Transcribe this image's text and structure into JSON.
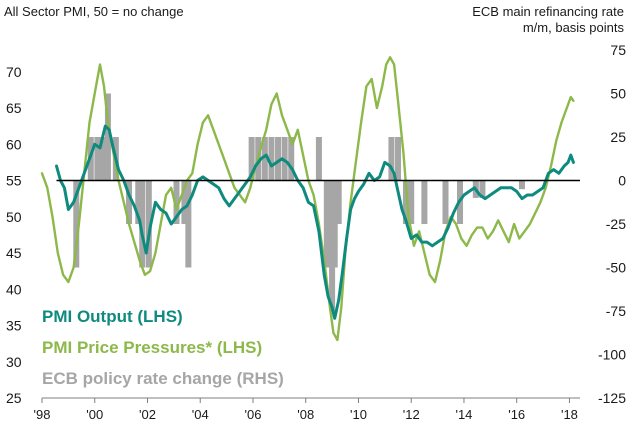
{
  "chart_data": {
    "type": "line",
    "left_axis_label": "All Sector PMI, 50 = no change",
    "right_axis_label_line1": "ECB main refinancing rate",
    "right_axis_label_line2": "m/m, basis points",
    "x_ticks": [
      "'98",
      "'00",
      "'02",
      "'04",
      "'06",
      "'08",
      "'10",
      "'12",
      "'14",
      "'16",
      "'18"
    ],
    "x_tick_years": [
      1998,
      2000,
      2002,
      2004,
      2006,
      2008,
      2010,
      2012,
      2014,
      2016,
      2018
    ],
    "xlim": [
      1998,
      2018.4
    ],
    "ylim_left": [
      25,
      73
    ],
    "yticks_left": [
      25,
      30,
      35,
      40,
      45,
      50,
      55,
      60,
      65,
      70
    ],
    "ylim_right": [
      -125,
      75
    ],
    "yticks_right": [
      75,
      50,
      25,
      0,
      -25,
      -50,
      -75,
      -100,
      -125
    ],
    "zero_line_right": 0,
    "colors": {
      "output": "#0e8b7e",
      "price": "#8db84a",
      "policy": "#a6a6a6",
      "zero": "#000000"
    },
    "series": [
      {
        "name": "PMI Output (LHS)",
        "axis": "left",
        "x": [
          1998.55,
          1998.7,
          1998.85,
          1999.0,
          1999.2,
          1999.4,
          1999.6,
          1999.8,
          2000.0,
          2000.2,
          2000.4,
          2000.55,
          2000.7,
          2000.9,
          2001.1,
          2001.3,
          2001.5,
          2001.7,
          2001.8,
          2001.95,
          2002.1,
          2002.3,
          2002.5,
          2002.7,
          2002.9,
          2003.1,
          2003.3,
          2003.5,
          2003.7,
          2003.9,
          2004.1,
          2004.3,
          2004.5,
          2004.7,
          2004.9,
          2005.1,
          2005.3,
          2005.5,
          2005.7,
          2005.9,
          2006.1,
          2006.3,
          2006.5,
          2006.7,
          2006.9,
          2007.1,
          2007.3,
          2007.5,
          2007.7,
          2007.9,
          2008.1,
          2008.3,
          2008.5,
          2008.7,
          2008.85,
          2009.0,
          2009.1,
          2009.25,
          2009.4,
          2009.55,
          2009.7,
          2009.85,
          2010.0,
          2010.2,
          2010.4,
          2010.6,
          2010.8,
          2011.0,
          2011.2,
          2011.35,
          2011.5,
          2011.65,
          2011.8,
          2012.0,
          2012.2,
          2012.4,
          2012.6,
          2012.8,
          2013.0,
          2013.2,
          2013.4,
          2013.6,
          2013.8,
          2014.0,
          2014.2,
          2014.4,
          2014.6,
          2014.8,
          2015.0,
          2015.2,
          2015.4,
          2015.6,
          2015.8,
          2016.0,
          2016.2,
          2016.4,
          2016.6,
          2016.8,
          2017.0,
          2017.2,
          2017.4,
          2017.6,
          2017.8,
          2017.95,
          2018.05,
          2018.15
        ],
        "values": [
          57,
          55,
          54,
          51,
          52,
          54,
          56,
          58,
          60,
          59.5,
          62.5,
          62,
          59.5,
          56.5,
          55,
          53,
          51.5,
          49.5,
          47.5,
          45,
          48.5,
          52,
          51,
          50.5,
          49,
          50,
          51,
          51.5,
          53,
          55,
          55.5,
          55,
          54.5,
          54,
          52.5,
          51.5,
          52.5,
          53.5,
          54.5,
          55.5,
          57,
          58,
          58.5,
          57,
          57.5,
          58,
          57.5,
          56.5,
          55,
          54,
          52,
          51.5,
          48,
          42,
          39,
          37.5,
          36,
          38.5,
          42.5,
          47,
          51,
          52.5,
          53.5,
          54.5,
          56,
          55,
          55.5,
          57.5,
          57,
          56,
          53.5,
          51,
          49.5,
          47,
          47.5,
          46.5,
          46.5,
          46,
          46.5,
          47,
          48.5,
          50.5,
          52,
          53,
          53.5,
          54,
          53,
          52.5,
          53,
          53.5,
          54,
          54,
          54,
          53.5,
          52.5,
          53,
          53,
          53.5,
          54,
          56,
          56.5,
          56,
          57,
          57.5,
          58.5,
          57.5
        ]
      },
      {
        "name": "PMI Price Pressures* (LHS)",
        "axis": "left",
        "x": [
          1998.0,
          1998.2,
          1998.4,
          1998.6,
          1998.8,
          1999.0,
          1999.2,
          1999.4,
          1999.6,
          1999.8,
          2000.0,
          2000.2,
          2000.35,
          2000.5,
          2000.7,
          2000.9,
          2001.1,
          2001.3,
          2001.5,
          2001.7,
          2001.9,
          2002.1,
          2002.3,
          2002.5,
          2002.7,
          2002.9,
          2003.1,
          2003.3,
          2003.5,
          2003.7,
          2003.9,
          2004.1,
          2004.3,
          2004.5,
          2004.7,
          2004.9,
          2005.1,
          2005.3,
          2005.5,
          2005.7,
          2005.9,
          2006.1,
          2006.3,
          2006.5,
          2006.7,
          2006.9,
          2007.1,
          2007.3,
          2007.5,
          2007.7,
          2007.9,
          2008.1,
          2008.3,
          2008.5,
          2008.7,
          2008.9,
          2009.05,
          2009.2,
          2009.35,
          2009.5,
          2009.7,
          2009.9,
          2010.1,
          2010.3,
          2010.5,
          2010.7,
          2010.9,
          2011.05,
          2011.2,
          2011.35,
          2011.5,
          2011.7,
          2011.9,
          2012.1,
          2012.3,
          2012.5,
          2012.7,
          2012.9,
          2013.1,
          2013.3,
          2013.5,
          2013.7,
          2013.9,
          2014.1,
          2014.3,
          2014.5,
          2014.7,
          2014.9,
          2015.1,
          2015.3,
          2015.5,
          2015.7,
          2015.9,
          2016.1,
          2016.3,
          2016.5,
          2016.7,
          2016.9,
          2017.1,
          2017.3,
          2017.5,
          2017.7,
          2017.9,
          2018.05,
          2018.15
        ],
        "values": [
          56,
          54,
          50,
          45,
          42,
          41,
          43,
          49,
          56,
          63,
          67,
          71,
          68,
          63,
          59,
          55,
          52,
          49,
          46.5,
          44,
          42,
          42.5,
          45,
          49,
          53,
          54,
          51,
          53,
          55,
          56,
          60,
          63,
          64,
          62,
          60,
          58,
          56,
          54,
          53,
          52,
          54,
          57,
          59.5,
          62,
          65.5,
          67,
          64,
          62,
          60,
          62,
          58.5,
          55,
          53,
          49,
          44,
          38,
          34,
          33,
          37.5,
          45,
          52,
          57.5,
          63,
          68,
          69,
          65,
          68,
          71,
          72,
          71,
          66,
          59,
          50,
          46,
          48,
          45,
          42,
          41,
          44,
          48,
          50,
          49,
          47,
          46,
          47.5,
          48.5,
          48.5,
          47,
          48,
          49.5,
          48,
          46.5,
          49,
          47,
          48,
          49,
          50.5,
          52,
          54,
          57,
          60.5,
          63,
          65,
          66.5,
          66
        ]
      }
    ],
    "policy_rate_changes": {
      "name": "ECB policy rate change (RHS)",
      "axis": "right",
      "x": [
        1999.3,
        1999.85,
        2000.1,
        2000.3,
        2000.5,
        2000.8,
        2001.3,
        2001.65,
        2001.8,
        2002.05,
        2003.1,
        2003.4,
        2003.55,
        2005.95,
        2006.2,
        2006.45,
        2006.7,
        2006.95,
        2007.2,
        2007.45,
        2008.5,
        2008.8,
        2008.9,
        2009.0,
        2009.1,
        2009.25,
        2011.25,
        2011.5,
        2011.8,
        2012.0,
        2012.5,
        2013.3,
        2013.85,
        2014.45,
        2014.7,
        2016.2
      ],
      "values": [
        -50,
        25,
        25,
        25,
        50,
        25,
        -25,
        -25,
        -50,
        -50,
        -25,
        -25,
        -50,
        25,
        25,
        25,
        25,
        25,
        25,
        25,
        25,
        -50,
        -50,
        -75,
        -50,
        -25,
        25,
        25,
        -25,
        -25,
        -25,
        -25,
        -25,
        -10,
        -10,
        -5
      ]
    }
  },
  "legend": {
    "output": "PMI Output (LHS)",
    "price": "PMI Price Pressures* (LHS)",
    "policy": "ECB policy rate change (RHS)"
  }
}
